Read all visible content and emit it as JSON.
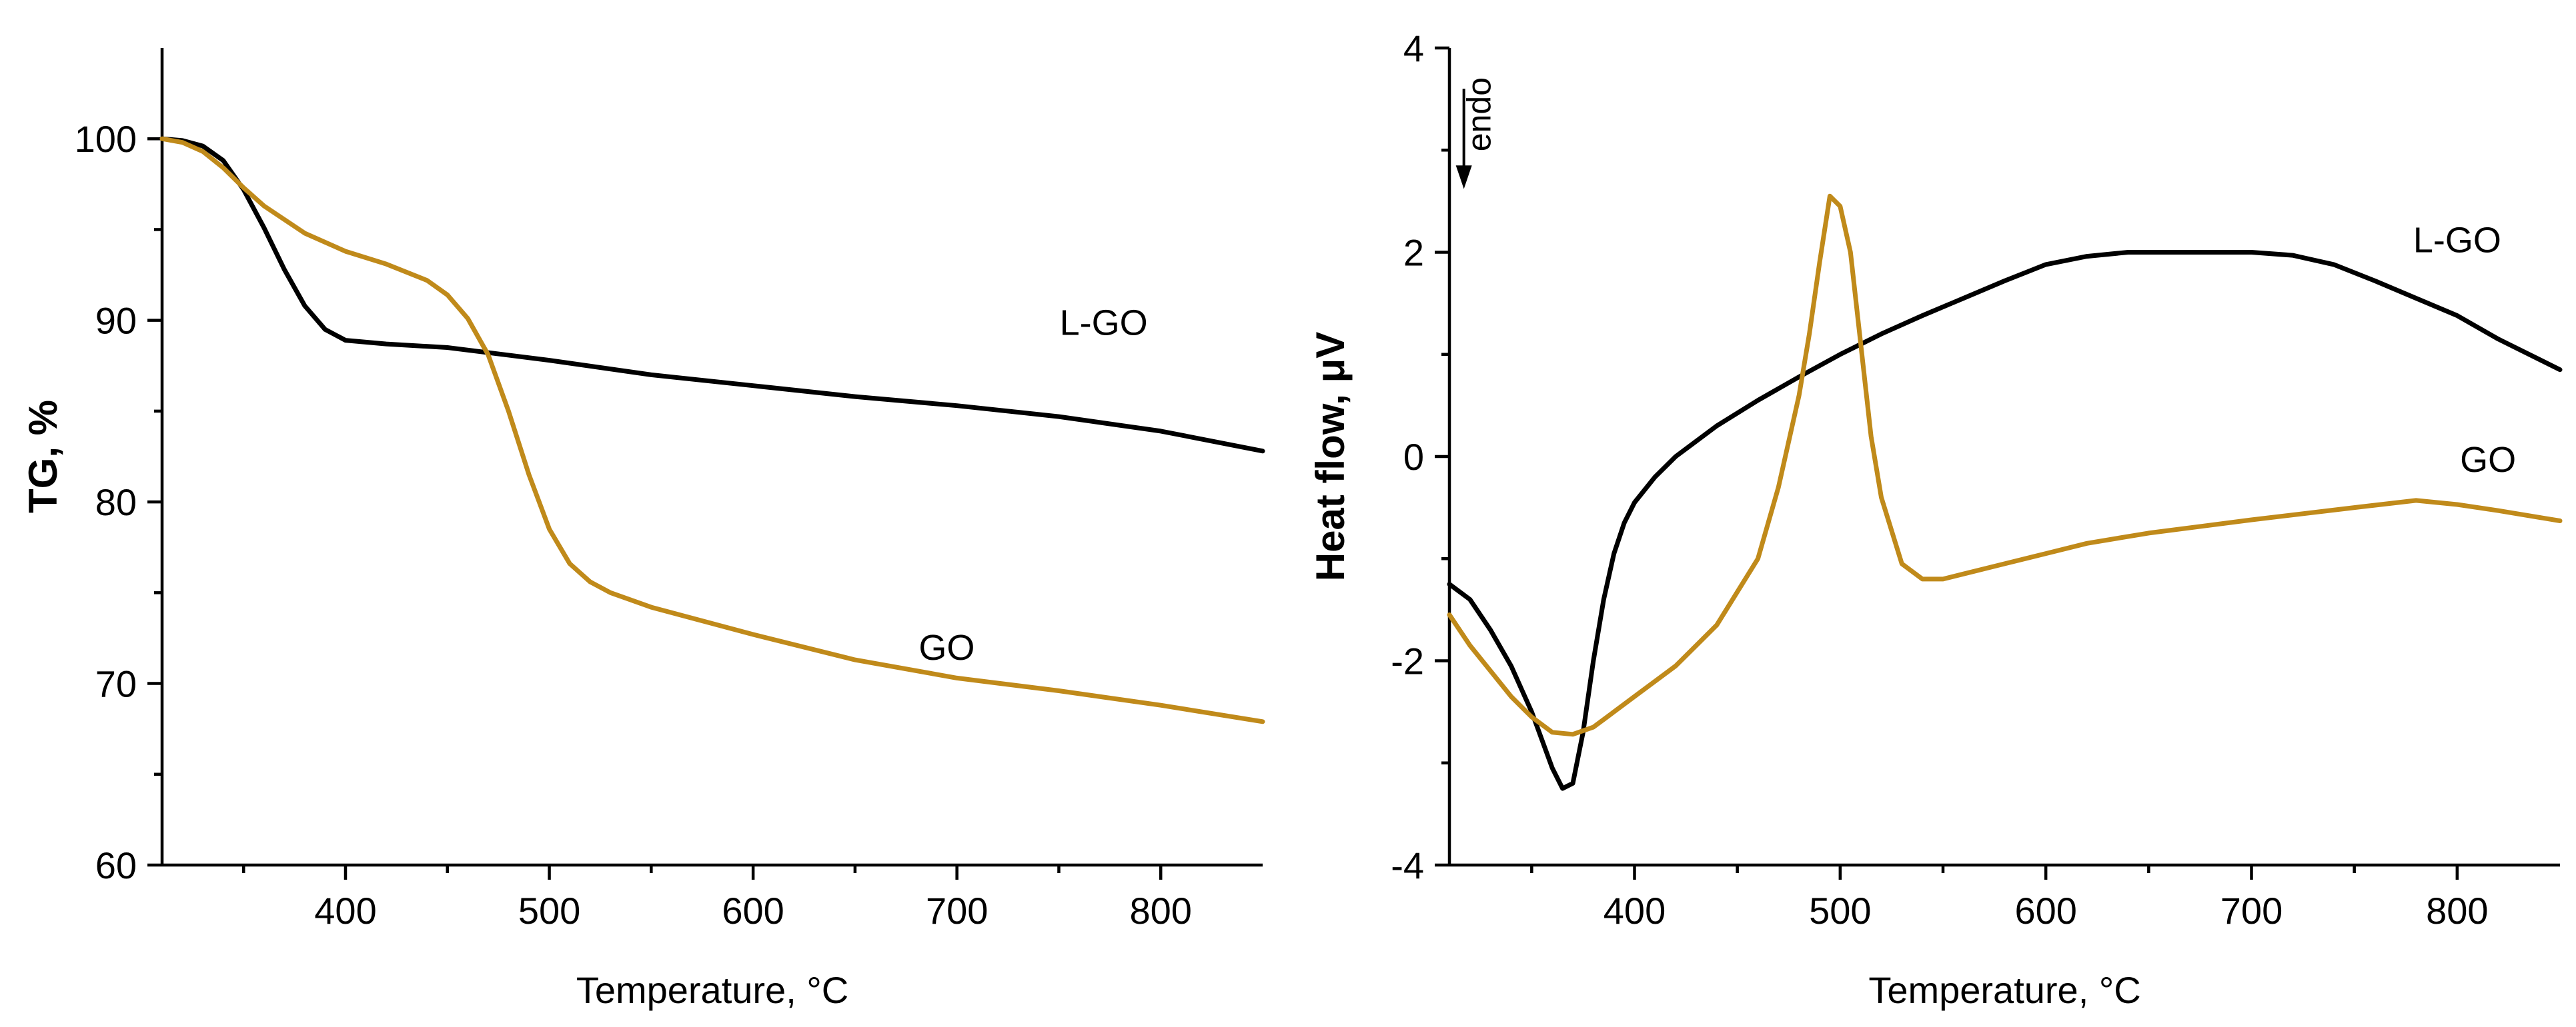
{
  "chart_data": [
    {
      "type": "line",
      "xlabel": "Temperature, °C",
      "ylabel": "TG, %",
      "xlim": [
        310,
        850
      ],
      "ylim": [
        60,
        105
      ],
      "xticks": [
        400,
        500,
        600,
        700,
        800
      ],
      "yticks": [
        60,
        70,
        80,
        90,
        100
      ],
      "grid": false,
      "series": [
        {
          "name": "L-GO",
          "color": "#000000",
          "x": [
            310,
            320,
            330,
            340,
            350,
            360,
            370,
            380,
            390,
            400,
            420,
            450,
            500,
            550,
            600,
            650,
            700,
            750,
            800,
            850
          ],
          "y": [
            100,
            99.9,
            99.6,
            98.8,
            97.2,
            95.1,
            92.8,
            90.8,
            89.5,
            88.9,
            88.7,
            88.5,
            87.8,
            87.0,
            86.4,
            85.8,
            85.3,
            84.7,
            83.9,
            82.8
          ]
        },
        {
          "name": "GO",
          "color": "#C08A1A",
          "x": [
            310,
            320,
            330,
            340,
            350,
            360,
            380,
            400,
            420,
            440,
            450,
            460,
            470,
            480,
            490,
            500,
            510,
            520,
            530,
            550,
            600,
            650,
            700,
            750,
            800,
            850
          ],
          "y": [
            100,
            99.8,
            99.3,
            98.4,
            97.3,
            96.3,
            94.8,
            93.8,
            93.1,
            92.2,
            91.4,
            90.1,
            88.1,
            85.0,
            81.5,
            78.5,
            76.6,
            75.6,
            75.0,
            74.2,
            72.7,
            71.3,
            70.3,
            69.6,
            68.8,
            67.9
          ]
        }
      ],
      "annotations": [
        {
          "text": "L-GO",
          "x": 772,
          "y": 89.2
        },
        {
          "text": "GO",
          "x": 695,
          "y": 71.3
        }
      ]
    },
    {
      "type": "line",
      "xlabel": "Temperature, °C",
      "ylabel": "Heat flow, μV",
      "xlim": [
        310,
        850
      ],
      "ylim": [
        -4,
        4
      ],
      "xticks": [
        400,
        500,
        600,
        700,
        800
      ],
      "yticks": [
        -4,
        -2,
        0,
        2,
        4
      ],
      "grid": false,
      "series": [
        {
          "name": "L-GO",
          "color": "#000000",
          "x": [
            310,
            320,
            330,
            340,
            350,
            360,
            365,
            370,
            375,
            380,
            385,
            390,
            395,
            400,
            410,
            420,
            440,
            460,
            480,
            500,
            520,
            540,
            560,
            580,
            600,
            620,
            640,
            660,
            680,
            700,
            720,
            740,
            760,
            780,
            800,
            820,
            850
          ],
          "y": [
            -1.25,
            -1.4,
            -1.7,
            -2.05,
            -2.5,
            -3.05,
            -3.25,
            -3.2,
            -2.7,
            -2.0,
            -1.4,
            -0.95,
            -0.65,
            -0.45,
            -0.2,
            0.0,
            0.3,
            0.55,
            0.78,
            1.0,
            1.2,
            1.38,
            1.55,
            1.72,
            1.88,
            1.96,
            2.0,
            2.0,
            2.0,
            2.0,
            1.97,
            1.88,
            1.72,
            1.55,
            1.38,
            1.15,
            0.85
          ]
        },
        {
          "name": "GO",
          "color": "#C08A1A",
          "x": [
            310,
            320,
            330,
            340,
            350,
            360,
            370,
            380,
            390,
            400,
            420,
            440,
            460,
            470,
            480,
            485,
            490,
            495,
            500,
            505,
            510,
            515,
            520,
            530,
            540,
            550,
            560,
            580,
            600,
            620,
            650,
            700,
            750,
            780,
            800,
            820,
            850
          ],
          "y": [
            -1.55,
            -1.85,
            -2.1,
            -2.35,
            -2.55,
            -2.7,
            -2.72,
            -2.65,
            -2.5,
            -2.35,
            -2.05,
            -1.65,
            -1.0,
            -0.3,
            0.6,
            1.2,
            1.9,
            2.55,
            2.45,
            2.0,
            1.1,
            0.2,
            -0.4,
            -1.05,
            -1.2,
            -1.2,
            -1.15,
            -1.05,
            -0.95,
            -0.85,
            -0.75,
            -0.62,
            -0.5,
            -0.43,
            -0.47,
            -0.53,
            -0.63
          ]
        }
      ],
      "annotations": [
        {
          "text": "L-GO",
          "x": 800,
          "y": 2.0
        },
        {
          "text": "GO",
          "x": 815,
          "y": -0.15
        },
        {
          "text": "endo",
          "x": 330,
          "y": 3.35
        }
      ]
    }
  ]
}
